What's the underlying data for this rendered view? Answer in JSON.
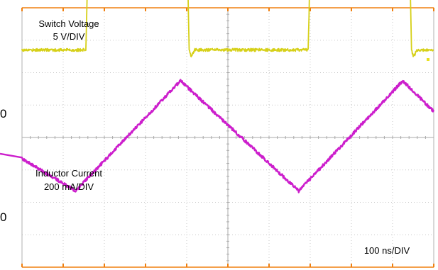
{
  "chart_data": {
    "type": "line",
    "title": "",
    "x": {
      "min_ns": 0,
      "max_ns": 1000,
      "div_ns": 100,
      "divisions": 10
    },
    "grid": true,
    "timebase_label": "100 ns/DIV",
    "channels": [
      {
        "name": "Switch Voltage",
        "scale_label": "5 V/DIV",
        "zero_marker": "0",
        "color": "#d6d018",
        "zero_div": 1.3,
        "points": [
          [
            0,
            0
          ],
          [
            155,
            0
          ],
          [
            163,
            4.2
          ],
          [
            168,
            4.0
          ],
          [
            400,
            3.85
          ],
          [
            406,
            0
          ],
          [
            411,
            -0.2
          ],
          [
            420,
            0
          ],
          [
            695,
            0
          ],
          [
            703,
            4.2
          ],
          [
            708,
            4.0
          ],
          [
            940,
            3.85
          ],
          [
            946,
            0
          ],
          [
            951,
            -0.2
          ],
          [
            960,
            0
          ],
          [
            1000,
            0
          ]
        ]
      },
      {
        "name": "Inductor Current",
        "scale_label": "200 mA/DIV",
        "zero_marker": "0",
        "color": "#cc1ecc",
        "zero_div": 4.65,
        "points": [
          [
            0,
            0
          ],
          [
            130,
            -1.0
          ],
          [
            385,
            2.4
          ],
          [
            672,
            -1.0
          ],
          [
            925,
            2.4
          ],
          [
            1000,
            1.45
          ]
        ]
      }
    ],
    "marker_color": "#f08010"
  }
}
